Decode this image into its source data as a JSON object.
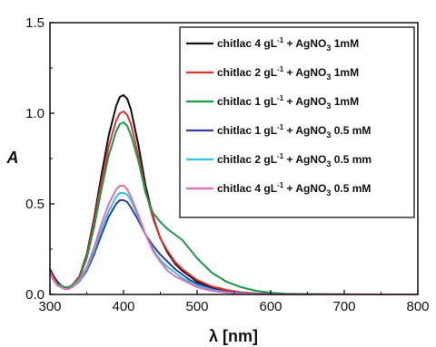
{
  "chart_data": {
    "type": "line",
    "xlabel": "λ [nm]",
    "ylabel": "A",
    "xlim": [
      300,
      800
    ],
    "ylim": [
      0,
      1.5
    ],
    "xticks": [
      "300",
      "400",
      "500",
      "600",
      "700",
      "800"
    ],
    "yticks": [
      "0.0",
      "0.5",
      "1.0",
      "1.5"
    ],
    "legend_position": "top-right",
    "series": [
      {
        "name": "chitlac 4 gL-1 + AgNO3 1mM",
        "color": "#111111",
        "x": [
          300,
          305,
          310,
          315,
          320,
          325,
          330,
          340,
          350,
          360,
          370,
          380,
          390,
          395,
          400,
          405,
          410,
          420,
          430,
          440,
          450,
          460,
          470,
          480,
          490,
          500,
          520,
          540,
          560,
          580,
          600,
          620,
          650,
          700,
          750,
          800
        ],
        "y": [
          0.14,
          0.1,
          0.07,
          0.05,
          0.04,
          0.04,
          0.05,
          0.1,
          0.22,
          0.42,
          0.66,
          0.88,
          1.04,
          1.09,
          1.1,
          1.08,
          1.02,
          0.83,
          0.6,
          0.43,
          0.31,
          0.23,
          0.17,
          0.13,
          0.1,
          0.07,
          0.04,
          0.02,
          0.01,
          0.005,
          0.003,
          0.002,
          0.001,
          0,
          0,
          0
        ]
      },
      {
        "name": "chitlac 2 gL-1 + AgNO3 1mM",
        "color": "#e3342f",
        "x": [
          300,
          305,
          310,
          315,
          320,
          325,
          330,
          340,
          350,
          360,
          370,
          380,
          390,
          395,
          400,
          405,
          410,
          420,
          430,
          440,
          450,
          460,
          470,
          480,
          490,
          500,
          520,
          540,
          560,
          580,
          600,
          620,
          650,
          700,
          750,
          800
        ],
        "y": [
          0.13,
          0.09,
          0.06,
          0.05,
          0.04,
          0.04,
          0.05,
          0.1,
          0.21,
          0.4,
          0.62,
          0.82,
          0.96,
          1.0,
          1.01,
          0.99,
          0.94,
          0.77,
          0.57,
          0.42,
          0.31,
          0.24,
          0.18,
          0.14,
          0.11,
          0.08,
          0.045,
          0.025,
          0.012,
          0.006,
          0.003,
          0.002,
          0.001,
          0,
          0,
          0
        ]
      },
      {
        "name": "chitlac 1 gL-1 + AgNO3 1mM",
        "color": "#1a9a48",
        "x": [
          300,
          305,
          310,
          315,
          320,
          325,
          330,
          340,
          350,
          360,
          370,
          380,
          390,
          395,
          400,
          405,
          410,
          420,
          430,
          440,
          450,
          460,
          470,
          480,
          490,
          500,
          520,
          540,
          560,
          580,
          600,
          620,
          650,
          700,
          750,
          800
        ],
        "y": [
          0.12,
          0.08,
          0.06,
          0.05,
          0.04,
          0.04,
          0.05,
          0.09,
          0.2,
          0.37,
          0.58,
          0.77,
          0.9,
          0.94,
          0.95,
          0.93,
          0.88,
          0.74,
          0.56,
          0.45,
          0.4,
          0.36,
          0.33,
          0.3,
          0.25,
          0.2,
          0.12,
          0.07,
          0.04,
          0.02,
          0.01,
          0.004,
          0.002,
          0.001,
          0,
          0
        ]
      },
      {
        "name": "chitlac 1 gL-1 + AgNO3 0.5 mM",
        "color": "#2f3f9e",
        "x": [
          300,
          305,
          310,
          315,
          320,
          325,
          330,
          340,
          350,
          360,
          370,
          380,
          390,
          395,
          400,
          405,
          410,
          420,
          430,
          440,
          450,
          460,
          470,
          480,
          490,
          500,
          520,
          540,
          560,
          580,
          600,
          620,
          650,
          700,
          750,
          800
        ],
        "y": [
          0.12,
          0.08,
          0.05,
          0.04,
          0.03,
          0.03,
          0.04,
          0.07,
          0.13,
          0.22,
          0.33,
          0.43,
          0.5,
          0.52,
          0.52,
          0.51,
          0.48,
          0.41,
          0.33,
          0.27,
          0.22,
          0.18,
          0.14,
          0.11,
          0.08,
          0.06,
          0.03,
          0.015,
          0.008,
          0.004,
          0.002,
          0.001,
          0,
          0,
          0,
          0
        ]
      },
      {
        "name": "chitlac 2 gL-1 + AgNO3 0.5 mm",
        "color": "#33c3e8",
        "x": [
          300,
          305,
          310,
          315,
          320,
          325,
          330,
          340,
          350,
          360,
          370,
          380,
          390,
          395,
          400,
          405,
          410,
          420,
          430,
          440,
          450,
          460,
          470,
          480,
          490,
          500,
          520,
          540,
          560,
          580,
          600,
          620,
          650,
          700,
          750,
          800
        ],
        "y": [
          0.12,
          0.08,
          0.05,
          0.04,
          0.03,
          0.03,
          0.04,
          0.07,
          0.14,
          0.24,
          0.36,
          0.46,
          0.54,
          0.56,
          0.56,
          0.55,
          0.52,
          0.43,
          0.33,
          0.25,
          0.19,
          0.15,
          0.12,
          0.09,
          0.07,
          0.05,
          0.025,
          0.012,
          0.006,
          0.003,
          0.001,
          0,
          0,
          0,
          0,
          0
        ]
      },
      {
        "name": "chitlac 4 gL-1 + AgNO3 0.5 mM",
        "color": "#e06fb0",
        "x": [
          300,
          305,
          310,
          315,
          320,
          325,
          330,
          340,
          350,
          360,
          370,
          380,
          390,
          395,
          400,
          405,
          410,
          420,
          430,
          440,
          450,
          460,
          470,
          480,
          490,
          500,
          520,
          540,
          560,
          580,
          600,
          620,
          650,
          700,
          750,
          800
        ],
        "y": [
          0.12,
          0.08,
          0.05,
          0.04,
          0.03,
          0.03,
          0.04,
          0.08,
          0.15,
          0.26,
          0.39,
          0.5,
          0.58,
          0.6,
          0.6,
          0.58,
          0.54,
          0.44,
          0.33,
          0.24,
          0.18,
          0.13,
          0.1,
          0.08,
          0.06,
          0.04,
          0.02,
          0.01,
          0.005,
          0.002,
          0.001,
          0,
          0,
          0,
          0,
          0
        ]
      }
    ]
  },
  "legend": [
    {
      "base": "chitlac 4 gL",
      "exp": "-1",
      "mid": " + AgNO",
      "sub": "3",
      "tail": " 1mM"
    },
    {
      "base": "chitlac 2 gL",
      "exp": "-1",
      "mid": " + AgNO",
      "sub": "3",
      "tail": " 1mM"
    },
    {
      "base": "chitlac 1 gL",
      "exp": "-1",
      "mid": " + AgNO",
      "sub": "3",
      "tail": " 1mM"
    },
    {
      "base": "chitlac 1 gL",
      "exp": "-1",
      "mid": " + AgNO",
      "sub": "3",
      "tail": " 0.5 mM"
    },
    {
      "base": "chitlac 2 gL",
      "exp": "-1",
      "mid": " + AgNO",
      "sub": "3",
      "tail": " 0.5 mm"
    },
    {
      "base": "chitlac 4 gL",
      "exp": "-1",
      "mid": " + AgNO",
      "sub": "3",
      "tail": " 0.5 mM"
    }
  ]
}
